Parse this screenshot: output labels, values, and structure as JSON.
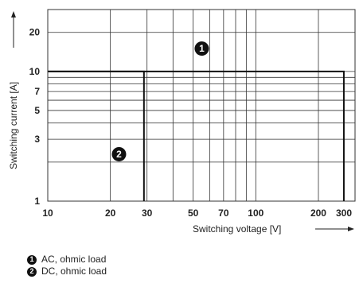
{
  "chart_data": {
    "type": "line",
    "xlabel": "Switching voltage [V]",
    "ylabel": "Switching current [A]",
    "x_scale": "log",
    "y_scale": "log",
    "xlim": [
      10,
      300
    ],
    "ylim": [
      1,
      30
    ],
    "x_ticks": [
      10,
      20,
      30,
      50,
      70,
      100,
      200,
      300
    ],
    "y_ticks": [
      1,
      3,
      5,
      7,
      10,
      20
    ],
    "grid": true,
    "series": [
      {
        "marker": "1",
        "name": "AC, ohmic load",
        "x": [
          10,
          265,
          265
        ],
        "y": [
          10,
          10,
          1
        ]
      },
      {
        "marker": "2",
        "name": "DC, ohmic load",
        "x": [
          10,
          29,
          29
        ],
        "y": [
          10,
          10,
          1
        ]
      }
    ],
    "legend": [
      {
        "marker": "1",
        "label": "AC, ohmic load"
      },
      {
        "marker": "2",
        "label": "DC, ohmic load"
      }
    ],
    "legend_position": "bottom-left"
  },
  "colors": {
    "grid": "#333333",
    "curve": "#111111",
    "marker": "#111111"
  }
}
